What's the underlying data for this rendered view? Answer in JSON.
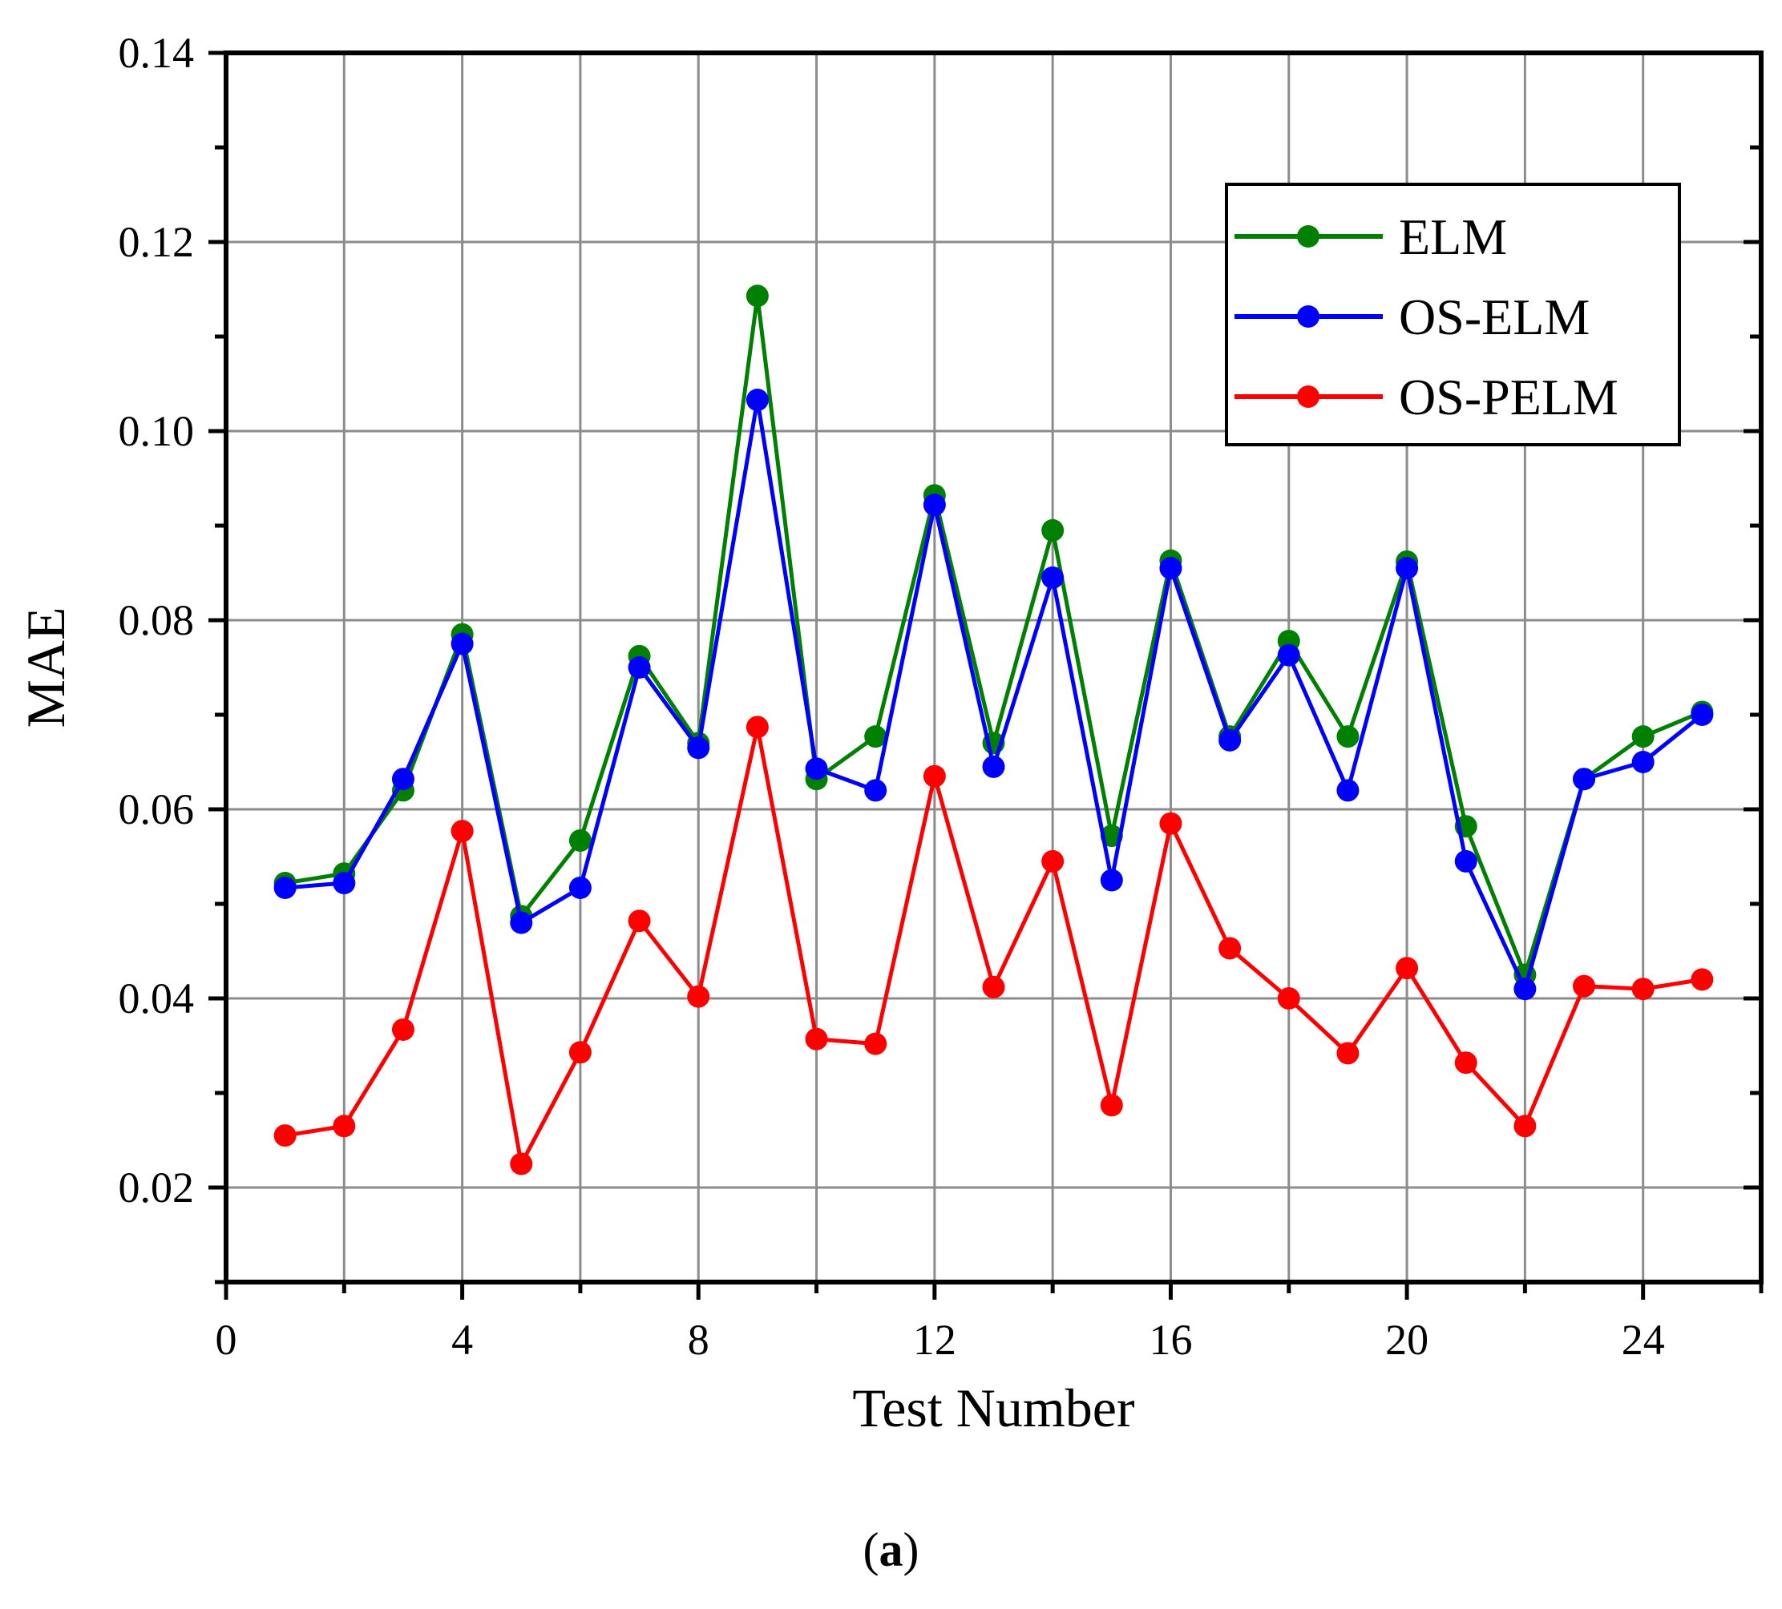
{
  "chart_data": {
    "type": "line",
    "title": "",
    "xlabel": "Test Number",
    "ylabel": "MAE",
    "xlim": [
      0,
      26
    ],
    "ylim": [
      0.01,
      0.14
    ],
    "xticks": [
      0,
      4,
      8,
      12,
      16,
      20,
      24
    ],
    "xtick_labels": [
      "0",
      "4",
      "8",
      "12",
      "16",
      "20",
      "24"
    ],
    "yticks": [
      0.02,
      0.04,
      0.06,
      0.08,
      0.1,
      0.12,
      0.14
    ],
    "ytick_labels": [
      "0.02",
      "0.04",
      "0.06",
      "0.08",
      "0.10",
      "0.12",
      "0.14"
    ],
    "grid": true,
    "legend_position": "top-right",
    "x": [
      1,
      2,
      3,
      4,
      5,
      6,
      7,
      8,
      9,
      10,
      11,
      12,
      13,
      14,
      15,
      16,
      17,
      18,
      19,
      20,
      21,
      22,
      23,
      24,
      25
    ],
    "series": [
      {
        "name": "ELM",
        "color": "#008000",
        "values": [
          0.0522,
          0.0532,
          0.062,
          0.0785,
          0.0487,
          0.0567,
          0.0762,
          0.067,
          0.1143,
          0.0632,
          0.0677,
          0.0932,
          0.067,
          0.0895,
          0.0572,
          0.0863,
          0.0677,
          0.0778,
          0.0677,
          0.0862,
          0.0582,
          0.0425,
          0.0632,
          0.0677,
          0.0703
        ]
      },
      {
        "name": "OS-ELM",
        "color": "#0000ff",
        "values": [
          0.0517,
          0.0522,
          0.0632,
          0.0775,
          0.048,
          0.0517,
          0.075,
          0.0665,
          0.1033,
          0.0643,
          0.062,
          0.0922,
          0.0645,
          0.0845,
          0.0525,
          0.0855,
          0.0673,
          0.0763,
          0.062,
          0.0855,
          0.0545,
          0.041,
          0.0632,
          0.065,
          0.07
        ]
      },
      {
        "name": "OS-PELM",
        "color": "#ff0000",
        "values": [
          0.0255,
          0.0265,
          0.0367,
          0.0577,
          0.0225,
          0.0343,
          0.0482,
          0.0402,
          0.0687,
          0.0357,
          0.0352,
          0.0635,
          0.0412,
          0.0545,
          0.0287,
          0.0585,
          0.0453,
          0.04,
          0.0342,
          0.0432,
          0.0332,
          0.0265,
          0.0413,
          0.041,
          0.042
        ]
      }
    ]
  },
  "caption": {
    "open": "(",
    "letter": "a",
    "close": ")"
  }
}
